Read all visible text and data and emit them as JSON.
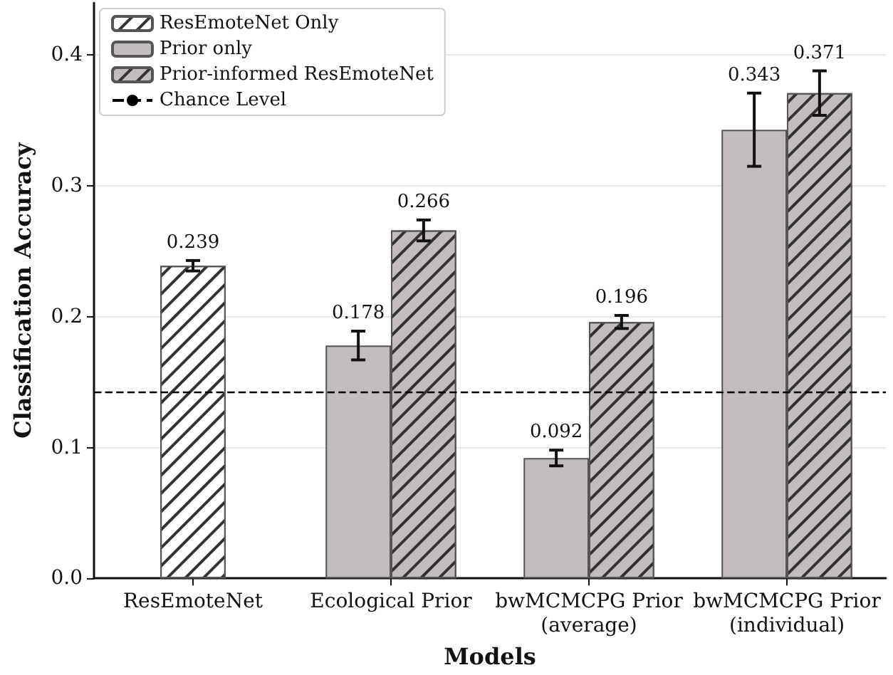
{
  "chart_data": {
    "type": "bar",
    "xlabel": "Models",
    "ylabel": "Classification Accuracy",
    "categories": [
      "ResEmoteNet",
      "Ecological Prior",
      "bwMCMCPG Prior\n(average)",
      "bwMCMCPG Prior\n(individual)"
    ],
    "series": [
      {
        "name": "ResEmoteNet Only",
        "color": "#ffffff",
        "values": [
          0.239,
          null,
          null,
          null
        ],
        "errors": [
          0.004,
          null,
          null,
          null
        ]
      },
      {
        "name": "Prior only",
        "color": "#c3bcbc",
        "values": [
          null,
          0.178,
          0.092,
          0.343
        ],
        "errors": [
          null,
          0.011,
          0.006,
          0.028
        ]
      },
      {
        "name": "Prior-informed ResEmoteNet",
        "color": "#c3bcbc",
        "values": [
          null,
          0.266,
          0.196,
          0.371
        ],
        "errors": [
          null,
          0.008,
          0.005,
          0.017
        ]
      }
    ],
    "ylim": [
      0,
      0.44
    ],
    "yticks": [
      {
        "value": 0,
        "label": "0.0"
      },
      {
        "value": 0.1,
        "label": "0.1"
      },
      {
        "value": 0.2,
        "label": "0.2"
      },
      {
        "value": 0.3,
        "label": "0.3"
      },
      {
        "value": 0.4,
        "label": "0.4"
      }
    ],
    "ref_lines": [
      {
        "axis": "y",
        "value": 0.143,
        "label": "Chance Level",
        "color": "#000000",
        "line_style": "dashed"
      }
    ],
    "data_labels": true,
    "grid": "y",
    "legend": "top left"
  }
}
